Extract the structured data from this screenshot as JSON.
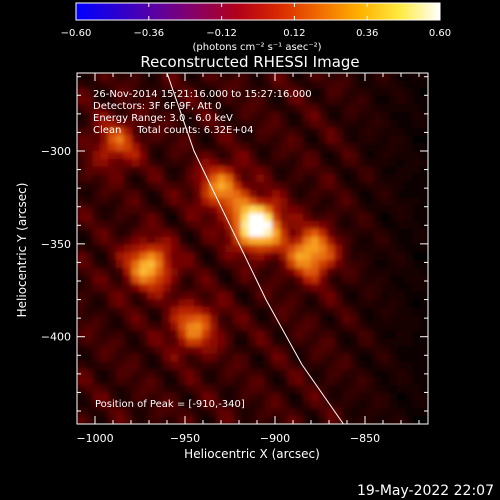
{
  "chart_data": {
    "type": "heatmap",
    "title": "Reconstructed RHESSI Image",
    "xlabel": "Heliocentric X (arcsec)",
    "ylabel": "Heliocentric Y (arcsec)",
    "xlim": [
      -1010,
      -815
    ],
    "ylim": [
      -447,
      -258
    ],
    "x_ticks": [
      -1000,
      -950,
      -900,
      -850
    ],
    "y_ticks": [
      -400,
      -350,
      -300
    ],
    "x_tick_labels": [
      "−1000",
      "−950",
      "−900",
      "−850"
    ],
    "y_tick_labels": [
      "−400",
      "−350",
      "−300"
    ],
    "colorbar": {
      "min": -0.6,
      "max": 0.6,
      "ticks": [
        -0.6,
        -0.36,
        -0.12,
        0.12,
        0.36,
        0.6
      ],
      "tick_labels": [
        "−0.60",
        "−0.36",
        "−0.12",
        "0.12",
        "0.36",
        "0.60"
      ],
      "unit_label": "(photons cm⁻² s⁻¹ asec⁻²)"
    },
    "annotations": [
      "26-Nov-2014 15:21:16.000 to 15:27:16.000",
      "Detectors: 3F 6F 9F, Att 0",
      "Energy Range: 3.0 - 6.0 keV",
      "Clean     Total counts: 6.32E+04"
    ],
    "peak_label": "Position of Peak = [-910,-340]",
    "peak_position": [
      -910,
      -340
    ],
    "sources": [
      {
        "x": -910,
        "y": -340,
        "intensity": 0.6
      },
      {
        "x": -880,
        "y": -355,
        "intensity": 0.38
      },
      {
        "x": -970,
        "y": -362,
        "intensity": 0.36
      },
      {
        "x": -945,
        "y": -395,
        "intensity": 0.28
      },
      {
        "x": -988,
        "y": -296,
        "intensity": 0.22
      },
      {
        "x": -930,
        "y": -320,
        "intensity": 0.3
      }
    ],
    "limb_arc": [
      [
        -960,
        -258
      ],
      [
        -945,
        -300
      ],
      [
        -925,
        -340
      ],
      [
        -905,
        -380
      ],
      [
        -885,
        -415
      ],
      [
        -862,
        -447
      ]
    ],
    "grid": false,
    "colormap": [
      "#000000",
      "#2a0000",
      "#6e0000",
      "#b41e00",
      "#e05a0a",
      "#f8a01e",
      "#ffe060",
      "#ffffff"
    ],
    "colorbar_colors": [
      "#0000ff",
      "#2a00d0",
      "#5c00a0",
      "#8a0060",
      "#b20018",
      "#d82800",
      "#f06a00",
      "#ffb000",
      "#ffea40",
      "#ffffff"
    ]
  },
  "footer": {
    "timestamp": "19-May-2022 22:07"
  }
}
